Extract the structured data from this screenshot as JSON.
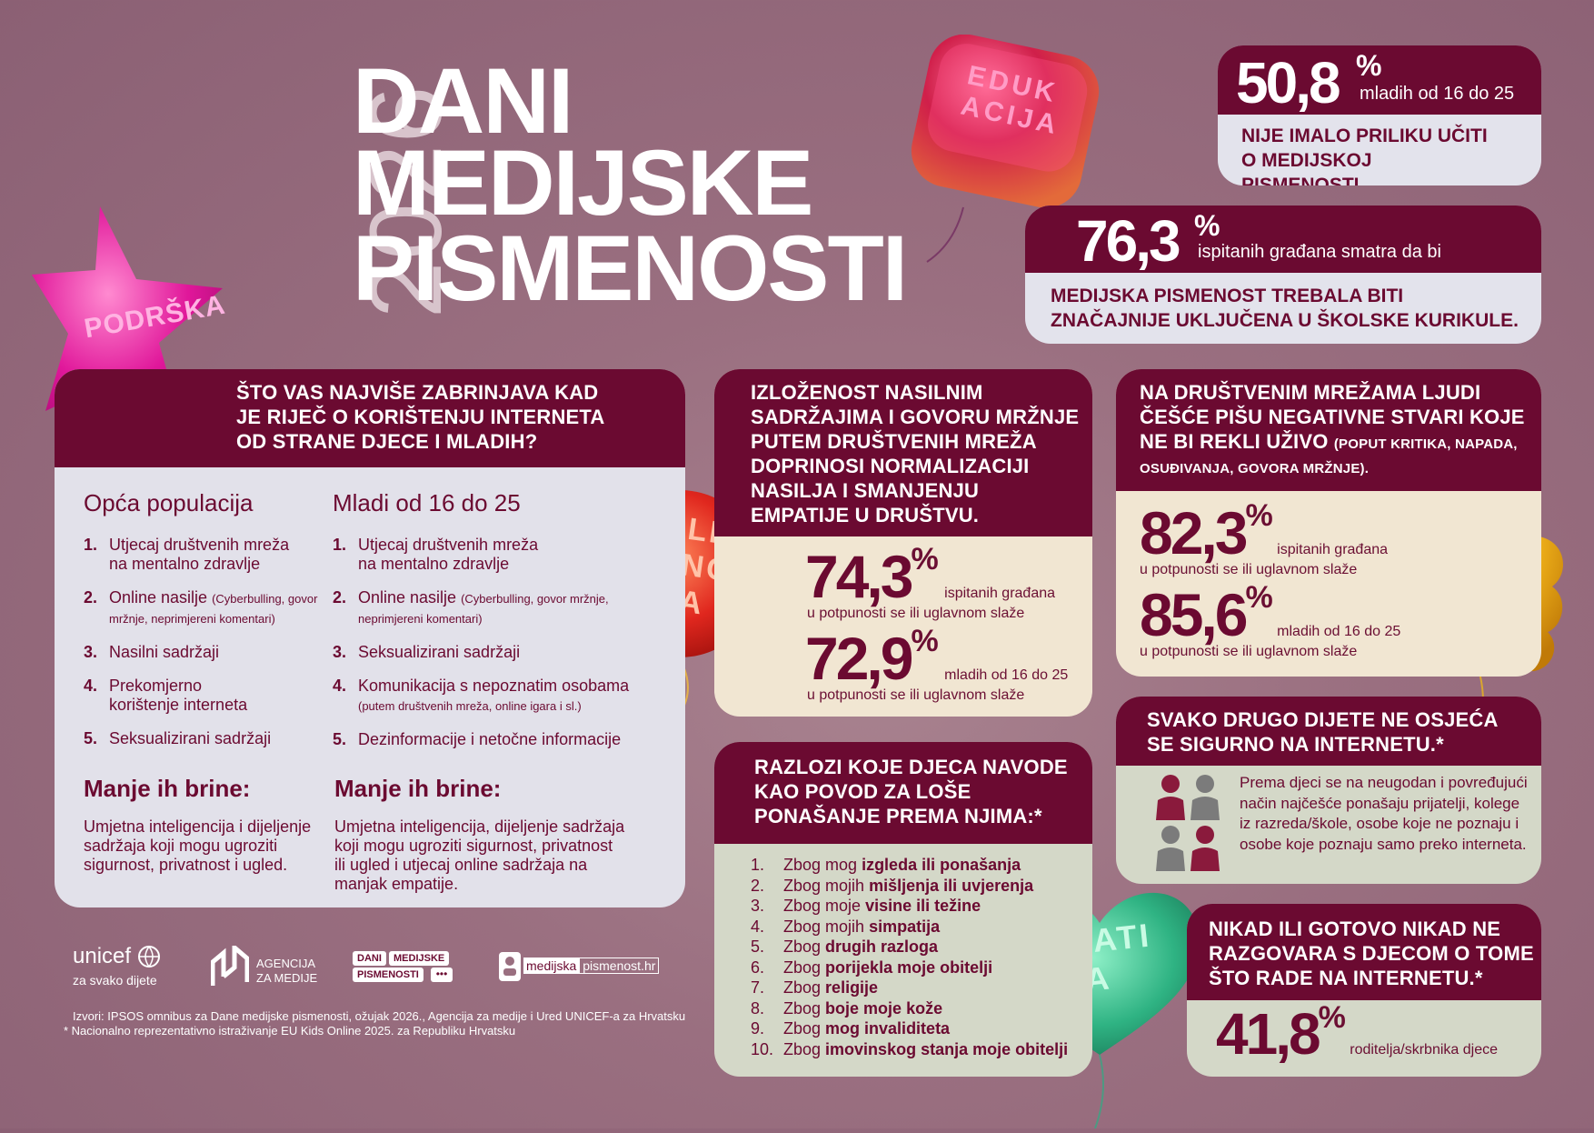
{
  "title": {
    "year": "2026",
    "line1": "DANI",
    "line2": "MEDIJSKE",
    "line3": "PISMENOSTI"
  },
  "balloons": {
    "edukacija": "EDUKACIJA",
    "podrska": "PODRŠKA",
    "tolerancija": "TOLERANCIJA",
    "empatija": "EMPATIJA"
  },
  "stat1": {
    "value": "50,8",
    "pct": "%",
    "subtitle": "mladih od 16 do 25",
    "text": "NIJE IMALO PRILIKU UČITI O MEDIJSKOJ PISMENOSTI."
  },
  "stat2": {
    "value": "76,3",
    "pct": "%",
    "subtitle": "ispitanih građana smatra da bi",
    "text1": "MEDIJSKA PISMENOST TREBALA BITI",
    "text2": "ZNAČAJNIJE UKLJUČENA U ŠKOLSKE KURIKULE."
  },
  "concern": {
    "heading1": "ŠTO VAS NAJVIŠE ZABRINJAVA KAD",
    "heading2": "JE RIJEČ O KORIŠTENJU INTERNETA",
    "heading3": "OD STRANE DJECE I MLADIH?",
    "col1_title": "Opća populacija",
    "col2_title": "Mladi od 16 do 25",
    "col1": [
      {
        "n": "1.",
        "t": "Utjecaj društvenih mreža na mentalno zdravlje"
      },
      {
        "n": "2.",
        "t": "Online nasilje",
        "s": "(Cyberbulling, govor mržnje, neprimjereni komentari)"
      },
      {
        "n": "3.",
        "t": "Nasilni sadržaji"
      },
      {
        "n": "4.",
        "t": "Prekomjerno korištenje interneta"
      },
      {
        "n": "5.",
        "t": "Seksualizirani sadržaji"
      }
    ],
    "col2": [
      {
        "n": "1.",
        "t": "Utjecaj društvenih mreža na mentalno zdravlje"
      },
      {
        "n": "2.",
        "t": "Online nasilje",
        "s": "(Cyberbulling, govor mržnje, neprimjereni komentari)"
      },
      {
        "n": "3.",
        "t": "Seksualizirani sadržaji"
      },
      {
        "n": "4.",
        "t": "Komunikacija s nepoznatim osobama",
        "s": "(putem društvenih mreža, online igara i sl.)"
      },
      {
        "n": "5.",
        "t": "Dezinformacije i netočne informacije"
      }
    ],
    "less_title": "Manje ih brine:",
    "less1": "Umjetna inteligencija i dijeljenje sadržaja koji mogu ugroziti sigurnost, privatnost i ugled.",
    "less2": "Umjetna inteligencija, dijeljenje sadržaja koji mogu ugroziti sigurnost, privatnost ili ugled i utjecaj online sadržaja na manjak empatije."
  },
  "violence": {
    "heading": [
      "IZLOŽENOST NASILNIM",
      "SADRŽAJIMA I GOVORU MRŽNJE",
      "PUTEM DRUŠTVENIH MREŽA",
      "DOPRINOSI NORMALIZACIJI",
      "NASILJA I SMANJENJU",
      "EMPATIJE U DRUŠTVU."
    ],
    "v1": "74,3",
    "v1_label": "ispitanih građana",
    "v1_sub": "u potpunosti se ili uglavnom slaže",
    "v2": "72,9",
    "v2_label": "mladih od 16 do 25",
    "v2_sub": "u potpunosti se ili uglavnom slaže",
    "pct": "%"
  },
  "reasons": {
    "heading": [
      "RAZLOZI KOJE DJECA NAVODE",
      "KAO POVOD ZA LOŠE",
      "PONAŠANJE PREMA NJIMA:*"
    ],
    "items": [
      {
        "n": "1.",
        "pre": "Zbog mog",
        "b": "izgleda ili ponašanja"
      },
      {
        "n": "2.",
        "pre": "Zbog mojih",
        "b": "mišljenja ili uvjerenja"
      },
      {
        "n": "3.",
        "pre": "Zbog moje",
        "b": "visine ili težine"
      },
      {
        "n": "4.",
        "pre": "Zbog mojih",
        "b": "simpatija"
      },
      {
        "n": "5.",
        "pre": "Zbog",
        "b": "drugih razloga"
      },
      {
        "n": "6.",
        "pre": "Zbog",
        "b": "porijekla moje obitelji"
      },
      {
        "n": "7.",
        "pre": "Zbog",
        "b": "religije"
      },
      {
        "n": "8.",
        "pre": "Zbog",
        "b": "boje moje kože"
      },
      {
        "n": "9.",
        "pre": "Zbog",
        "b": "mog invaliditeta"
      },
      {
        "n": "10.",
        "pre": "Zbog",
        "b": "imovinskog stanja moje obitelji"
      }
    ]
  },
  "social": {
    "heading": [
      "NA DRUŠTVENIM MREŽAMA LJUDI",
      "ČEŠĆE PIŠU NEGATIVNE STVARI KOJE",
      "NE BI REKLI UŽIVO"
    ],
    "heading_small1": "(POPUT KRITIKA, NAPADA,",
    "heading_small2": "OSUĐIVANJA, GOVORA MRŽNJE).",
    "v1": "82,3",
    "v1_label": "ispitanih građana",
    "v1_sub": "u potpunosti se ili uglavnom slaže",
    "v2": "85,6",
    "v2_label": "mladih od 16 do 25",
    "v2_sub": "u potpunosti se ili uglavnom slaže",
    "pct": "%"
  },
  "unsafe": {
    "heading": [
      "SVAKO DRUGO DIJETE NE OSJEĆA",
      "SE SIGURNO NA INTERNETU.*"
    ],
    "text": "Prema djeci se na neugodan i povređujući način najčešće ponašaju prijatelji, kolege iz razreda/škole, osobe koje ne poznaju i osobe koje poznaju samo preko interneta."
  },
  "parents": {
    "heading": [
      "NIKAD ILI GOTOVO NIKAD NE",
      "RAZGOVARA S DJECOM O TOME",
      "ŠTO RADE NA INTERNETU.*"
    ],
    "value": "41,8",
    "pct": "%",
    "label": "roditelja/skrbnika djece"
  },
  "logos": {
    "unicef": "unicef",
    "unicef_sub": "za svako dijete",
    "agency1": "AGENCIJA",
    "agency2": "ZA MEDIJE",
    "dmp1": "DANI",
    "dmp2": "MEDIJSKE",
    "dmp3": "PISMENOSTI",
    "mp1": "medijska",
    "mp2": "pismenost.hr"
  },
  "sources": {
    "line1": "Izvori: IPSOS omnibus za Dane medijske pismenosti, ožujak 2026., Agencija za medije i Ured UNICEF-a za Hrvatsku",
    "line2": "* Nacionalno reprezentativno istraživanje EU Kids Online 2025. za Republiku Hrvatsku"
  }
}
